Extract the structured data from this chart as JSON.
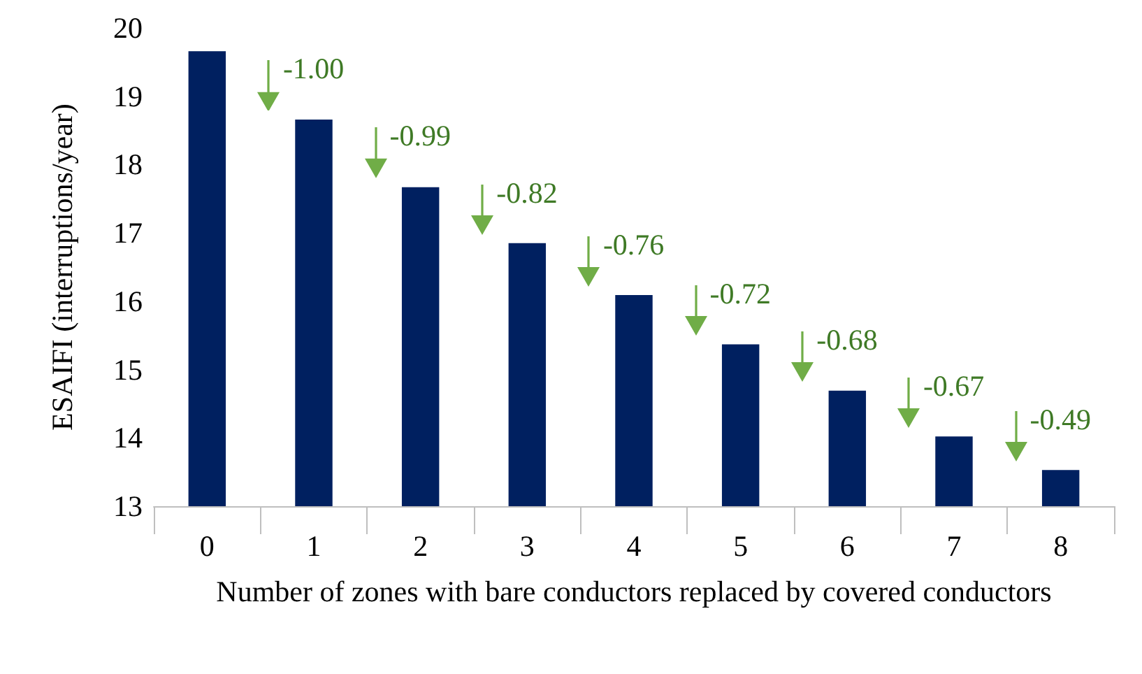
{
  "chart_data": {
    "type": "bar",
    "xlabel": "Number of zones with bare conductors replaced by covered conductors",
    "ylabel": "ESAIFI (interruptions/year)",
    "categories": [
      "0",
      "1",
      "2",
      "3",
      "4",
      "5",
      "6",
      "7",
      "8"
    ],
    "values": [
      19.66,
      18.66,
      17.67,
      16.85,
      16.09,
      15.37,
      14.69,
      14.02,
      13.53
    ],
    "color": "#002060",
    "ylim": [
      13,
      20
    ],
    "yticks": [
      13,
      14,
      15,
      16,
      17,
      18,
      19,
      20
    ],
    "grid": false,
    "annotations": [
      {
        "text": "-1.00",
        "x": "1",
        "y": 18.66
      },
      {
        "text": "-0.99",
        "x": "2",
        "y": 17.67
      },
      {
        "text": "-0.82",
        "x": "3",
        "y": 16.85
      },
      {
        "text": "-0.76",
        "x": "4",
        "y": 16.09
      },
      {
        "text": "-0.72",
        "x": "5",
        "y": 15.37
      },
      {
        "text": "-0.68",
        "x": "6",
        "y": 14.69
      },
      {
        "text": "-0.67",
        "x": "7",
        "y": 14.02
      },
      {
        "text": "-0.49",
        "x": "8",
        "y": 13.53
      }
    ]
  }
}
